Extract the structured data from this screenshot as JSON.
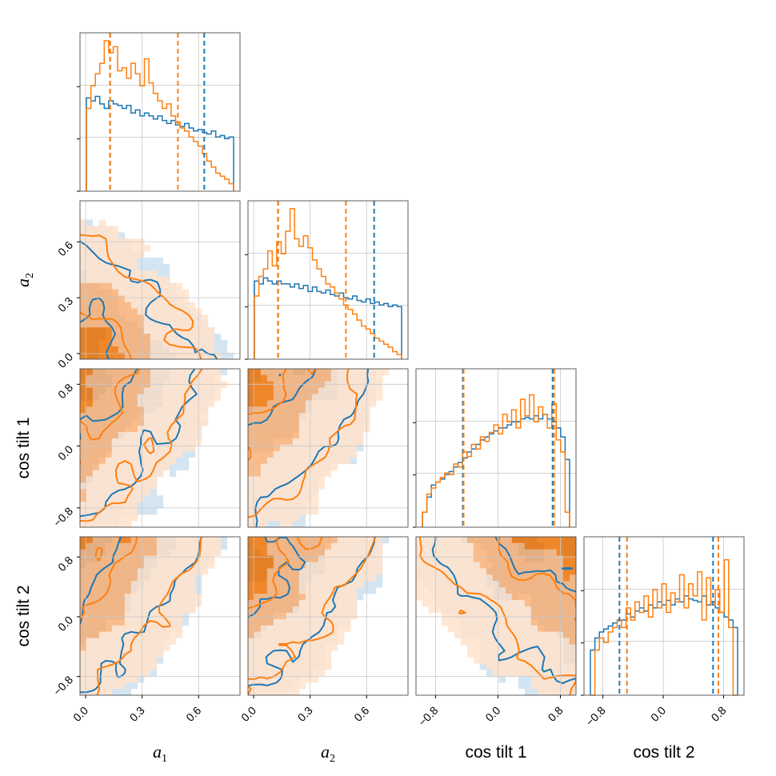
{
  "chart_data": {
    "type": "corner",
    "grid": true,
    "parameters": [
      {
        "key": "a1",
        "label_main": "a",
        "label_sub": "1",
        "range": [
          -0.03,
          0.82
        ],
        "ticks": [
          0.0,
          0.3,
          0.6
        ],
        "tick_labels": [
          "0.0",
          "0.3",
          "0.6"
        ]
      },
      {
        "key": "a2",
        "label_main": "a",
        "label_sub": "2",
        "range": [
          -0.03,
          0.82
        ],
        "ticks": [
          0.0,
          0.3,
          0.6
        ],
        "tick_labels": [
          "0.0",
          "0.3",
          "0.6"
        ]
      },
      {
        "key": "cos_tilt_1",
        "label_main": "cos tilt 1",
        "label_sub": "",
        "range": [
          -1.05,
          1.0
        ],
        "ticks": [
          -0.8,
          0.0,
          0.8
        ],
        "tick_labels": [
          "−0.8",
          "0.0",
          "0.8"
        ]
      },
      {
        "key": "cos_tilt_2",
        "label_main": "cos tilt 2",
        "label_sub": "",
        "range": [
          -1.05,
          1.07
        ],
        "ticks": [
          -0.8,
          0.0,
          0.8
        ],
        "tick_labels": [
          "−0.8",
          "0.0",
          "0.8"
        ]
      }
    ],
    "series": [
      {
        "color": "#1f77b4",
        "fill_dark": "#1f77b4",
        "fill_mid": "#7fb0d9",
        "fill_light": "#cfe2f1",
        "quantiles": [
          [
            0.13,
            0.63
          ],
          [
            0.13,
            0.64
          ],
          [
            -0.45,
            0.7
          ],
          [
            -0.58,
            0.66
          ]
        ]
      },
      {
        "color": "#ff7f0e",
        "fill_dark": "#ff7f0e",
        "fill_mid": "#ffb57a",
        "fill_light": "#ffe3cc",
        "quantiles": [
          [
            0.13,
            0.49
          ],
          [
            0.13,
            0.49
          ],
          [
            -0.44,
            0.72
          ],
          [
            -0.48,
            0.73
          ]
        ]
      }
    ],
    "histograms": {
      "a1": {
        "s0": [
          0.62,
          0.6,
          0.63,
          0.58,
          0.55,
          0.6,
          0.58,
          0.57,
          0.55,
          0.57,
          0.52,
          0.54,
          0.5,
          0.52,
          0.5,
          0.48,
          0.5,
          0.47,
          0.45,
          0.47,
          0.44,
          0.43,
          0.45,
          0.42,
          0.4,
          0.41,
          0.39,
          0.38,
          0.4,
          0.36,
          0.37,
          0.35,
          0.36
        ],
        "s1": [
          0.55,
          0.7,
          0.78,
          0.85,
          1.0,
          0.92,
          0.96,
          0.8,
          0.82,
          0.75,
          0.85,
          0.78,
          0.7,
          0.88,
          0.72,
          0.65,
          0.6,
          0.55,
          0.58,
          0.5,
          0.46,
          0.42,
          0.4,
          0.36,
          0.33,
          0.3,
          0.25,
          0.2,
          0.16,
          0.12,
          0.1,
          0.08,
          0.05
        ]
      },
      "a2": {
        "s0": [
          0.52,
          0.5,
          0.54,
          0.52,
          0.5,
          0.52,
          0.5,
          0.5,
          0.48,
          0.5,
          0.47,
          0.49,
          0.45,
          0.48,
          0.45,
          0.44,
          0.46,
          0.43,
          0.42,
          0.44,
          0.41,
          0.4,
          0.42,
          0.39,
          0.38,
          0.4,
          0.37,
          0.38,
          0.36,
          0.37,
          0.35,
          0.36,
          0.35
        ],
        "s1": [
          0.42,
          0.55,
          0.6,
          0.72,
          0.62,
          0.78,
          0.7,
          0.85,
          1.0,
          0.8,
          0.75,
          0.82,
          0.74,
          0.66,
          0.6,
          0.55,
          0.5,
          0.48,
          0.44,
          0.4,
          0.36,
          0.33,
          0.3,
          0.26,
          0.22,
          0.2,
          0.17,
          0.14,
          0.12,
          0.1,
          0.08,
          0.05,
          0.03
        ]
      },
      "cos_tilt_1": {
        "s0": [
          0.1,
          0.2,
          0.28,
          0.3,
          0.32,
          0.35,
          0.37,
          0.4,
          0.43,
          0.46,
          0.5,
          0.52,
          0.55,
          0.58,
          0.6,
          0.62,
          0.64,
          0.66,
          0.66,
          0.68,
          0.7,
          0.7,
          0.72,
          0.73,
          0.72,
          0.74,
          0.72,
          0.75,
          0.72,
          0.7,
          0.66,
          0.6,
          0.45
        ],
        "s1": [
          0.1,
          0.22,
          0.26,
          0.3,
          0.33,
          0.36,
          0.35,
          0.42,
          0.4,
          0.5,
          0.47,
          0.55,
          0.52,
          0.6,
          0.57,
          0.63,
          0.68,
          0.62,
          0.75,
          0.7,
          0.78,
          0.66,
          0.85,
          0.74,
          0.88,
          0.7,
          0.8,
          0.75,
          0.66,
          0.82,
          0.58,
          0.5,
          0.1
        ]
      },
      "cos_tilt_2": {
        "s0": [
          0.3,
          0.38,
          0.42,
          0.44,
          0.46,
          0.48,
          0.5,
          0.5,
          0.54,
          0.52,
          0.56,
          0.58,
          0.56,
          0.6,
          0.58,
          0.62,
          0.6,
          0.63,
          0.6,
          0.64,
          0.62,
          0.66,
          0.64,
          0.63,
          0.62,
          0.66,
          0.6,
          0.62,
          0.58,
          0.55,
          0.52,
          0.5,
          0.45
        ],
        "s1": [
          0.0,
          0.3,
          0.38,
          0.35,
          0.42,
          0.45,
          0.5,
          0.45,
          0.58,
          0.5,
          0.62,
          0.55,
          0.66,
          0.52,
          0.7,
          0.58,
          0.74,
          0.55,
          0.68,
          0.62,
          0.8,
          0.58,
          0.74,
          0.66,
          0.82,
          0.5,
          0.78,
          0.6,
          0.7,
          0.55,
          0.9,
          0.45,
          0.0
        ]
      }
    }
  }
}
